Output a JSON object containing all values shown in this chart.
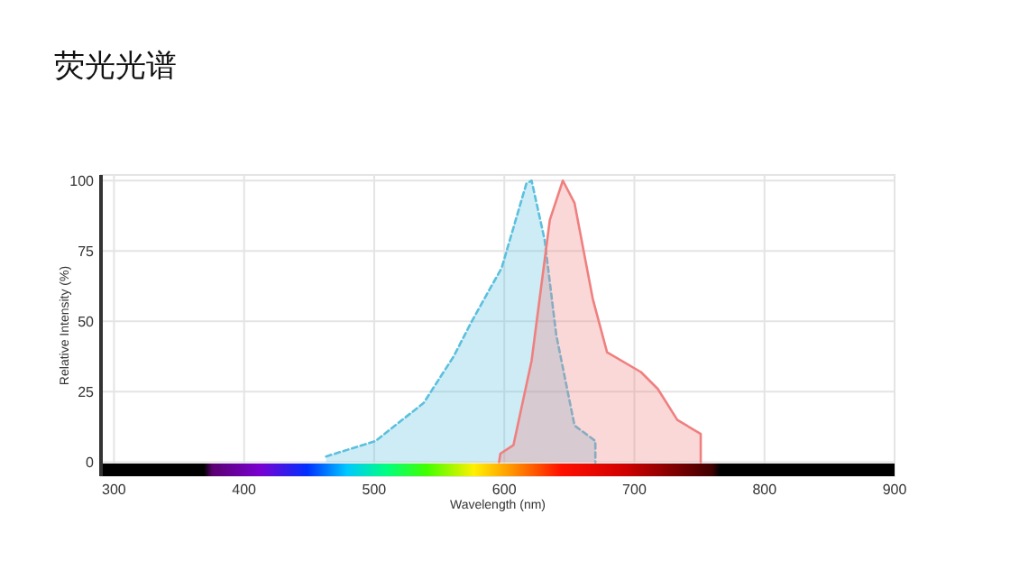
{
  "chart_data": {
    "type": "area",
    "title": "荧光光谱",
    "xlabel": "Wavelength (nm)",
    "ylabel": "Relative Intensity (%)",
    "xlim": [
      290,
      900
    ],
    "ylim": [
      -5,
      102
    ],
    "xticks": [
      300,
      400,
      500,
      600,
      700,
      800,
      900
    ],
    "yticks": [
      0,
      25,
      50,
      75,
      100
    ],
    "grid": true,
    "series": [
      {
        "color": "#5bc0de",
        "line_style": "dashed",
        "x": [
          463,
          501,
          538,
          561,
          575,
          598,
          617,
          621,
          631,
          640,
          654,
          670,
          670
        ],
        "values": [
          2,
          7.5,
          21,
          37.5,
          50,
          69,
          99,
          100,
          79,
          45,
          13,
          7.5,
          0
        ]
      },
      {
        "color": "#f07f7f",
        "line_style": "solid",
        "x": [
          596,
          597,
          607,
          621,
          635,
          645,
          654,
          668,
          679,
          705,
          718,
          733,
          751,
          751
        ],
        "values": [
          0,
          3,
          6,
          36,
          86,
          100,
          92,
          58,
          39,
          32,
          26,
          15,
          10,
          0
        ]
      }
    ]
  }
}
